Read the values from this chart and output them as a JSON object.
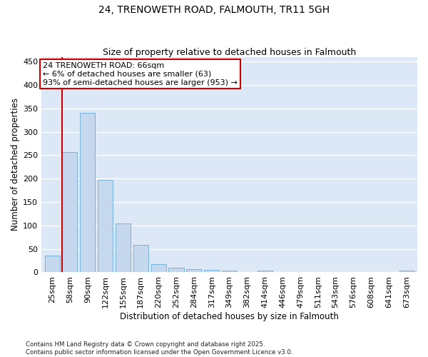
{
  "title": "24, TRENOWETH ROAD, FALMOUTH, TR11 5GH",
  "subtitle": "Size of property relative to detached houses in Falmouth",
  "xlabel": "Distribution of detached houses by size in Falmouth",
  "ylabel": "Number of detached properties",
  "categories": [
    "25sqm",
    "58sqm",
    "90sqm",
    "122sqm",
    "155sqm",
    "187sqm",
    "220sqm",
    "252sqm",
    "284sqm",
    "317sqm",
    "349sqm",
    "382sqm",
    "414sqm",
    "446sqm",
    "479sqm",
    "511sqm",
    "543sqm",
    "576sqm",
    "608sqm",
    "641sqm",
    "673sqm"
  ],
  "values": [
    35,
    257,
    340,
    197,
    105,
    58,
    18,
    10,
    7,
    5,
    4,
    0,
    4,
    0,
    0,
    0,
    0,
    0,
    0,
    0,
    4
  ],
  "bar_color": "#c5d8ee",
  "bar_edge_color": "#6aaad4",
  "red_line_index": 1,
  "annotation_line1": "24 TRENOWETH ROAD: 66sqm",
  "annotation_line2": "← 6% of detached houses are smaller (63)",
  "annotation_line3": "93% of semi-detached houses are larger (953) →",
  "annotation_box_color": "#ffffff",
  "annotation_box_edge": "#cc0000",
  "red_line_color": "#cc0000",
  "ylim": [
    0,
    460
  ],
  "yticks": [
    0,
    50,
    100,
    150,
    200,
    250,
    300,
    350,
    400,
    450
  ],
  "bg_color": "#dce8f5",
  "grid_color": "#ffffff",
  "footer": "Contains HM Land Registry data © Crown copyright and database right 2025.\nContains public sector information licensed under the Open Government Licence v3.0.",
  "title_fontsize": 10,
  "subtitle_fontsize": 9,
  "xlabel_fontsize": 8.5,
  "ylabel_fontsize": 8.5,
  "annotation_fontsize": 8,
  "tick_fontsize": 7.5,
  "ytick_fontsize": 8
}
